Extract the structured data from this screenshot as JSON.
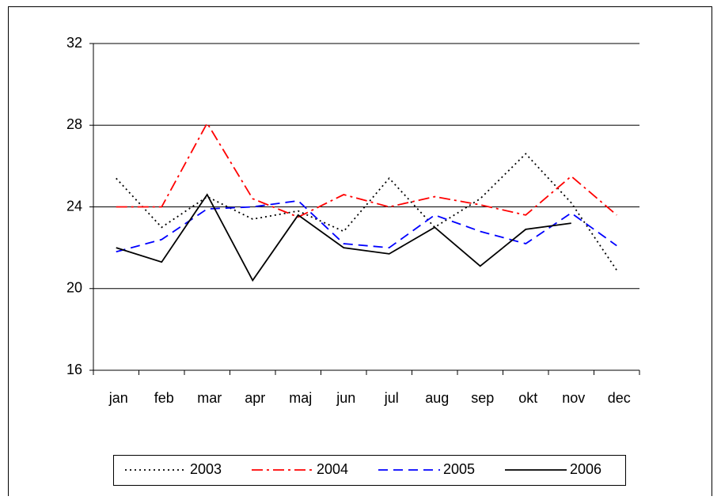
{
  "chart_data": {
    "type": "line",
    "categories": [
      "jan",
      "feb",
      "mar",
      "apr",
      "maj",
      "jun",
      "jul",
      "aug",
      "sep",
      "okt",
      "nov",
      "dec"
    ],
    "series": [
      {
        "name": "2003",
        "color": "#000000",
        "dash": "2,4",
        "values": [
          25.4,
          23.0,
          24.5,
          23.4,
          23.8,
          22.8,
          25.4,
          23.0,
          24.4,
          26.6,
          24.2,
          20.9
        ]
      },
      {
        "name": "2004",
        "color": "#ff0000",
        "dash": "14,5,3,5",
        "values": [
          24.0,
          24.0,
          28.1,
          24.4,
          23.5,
          24.6,
          24.0,
          24.5,
          24.1,
          23.6,
          25.5,
          23.6
        ]
      },
      {
        "name": "2005",
        "color": "#0000ff",
        "dash": "12,7",
        "values": [
          21.8,
          22.4,
          23.9,
          24.0,
          24.3,
          22.2,
          22.0,
          23.6,
          22.8,
          22.2,
          23.7,
          22.1
        ]
      },
      {
        "name": "2006",
        "color": "#000000",
        "dash": "none",
        "values": [
          22.0,
          21.3,
          24.6,
          20.4,
          23.6,
          22.0,
          21.7,
          23.0,
          21.1,
          22.9,
          23.2,
          null
        ]
      }
    ],
    "ylim": [
      16,
      32
    ],
    "yticks": [
      16,
      20,
      24,
      28,
      32
    ],
    "grid": true,
    "legend": "bottom"
  }
}
